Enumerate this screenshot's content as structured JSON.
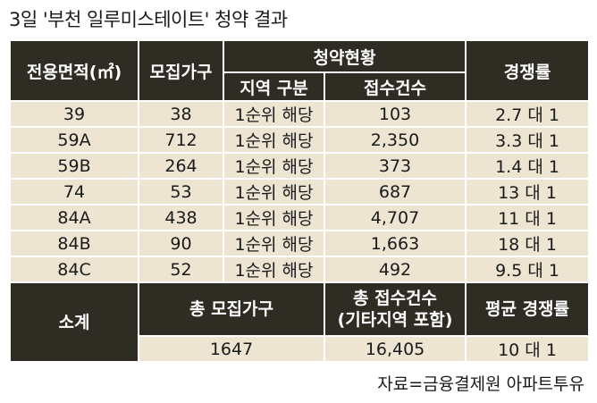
{
  "title": "3일 '부천 일루미스테이트' 청약 결과",
  "headers": {
    "area": "전용면적(㎡)",
    "recruit": "모집가구",
    "status": "청약현황",
    "region": "지역 구분",
    "applications": "접수건수",
    "competition": "경쟁률"
  },
  "rows": [
    {
      "area": "39",
      "recruit": "38",
      "region": "1순위 해당",
      "applications": "103",
      "competition": "2.7 대 1"
    },
    {
      "area": "59A",
      "recruit": "712",
      "region": "1순위 해당",
      "applications": "2,350",
      "competition": "3.3 대 1"
    },
    {
      "area": "59B",
      "recruit": "264",
      "region": "1순위 해당",
      "applications": "373",
      "competition": "1.4 대 1"
    },
    {
      "area": "74",
      "recruit": "53",
      "region": "1순위 해당",
      "applications": "687",
      "competition": "13 대 1"
    },
    {
      "area": "84A",
      "recruit": "438",
      "region": "1순위 해당",
      "applications": "4,707",
      "competition": "11 대 1"
    },
    {
      "area": "84B",
      "recruit": "90",
      "region": "1순위 해당",
      "applications": "1,663",
      "competition": "18 대 1"
    },
    {
      "area": "84C",
      "recruit": "52",
      "region": "1순위 해당",
      "applications": "492",
      "competition": "9.5 대 1"
    }
  ],
  "summary": {
    "label": "소계",
    "total_recruit_header": "총 모집가구",
    "total_applications_header_line1": "총 접수건수",
    "total_applications_header_line2": "(기타지역 포함)",
    "avg_competition_header": "평균 경쟁률",
    "total_recruit": "1647",
    "total_applications": "16,405",
    "avg_competition": "10 대 1"
  },
  "source": "자료=금융결제원 아파트투유"
}
